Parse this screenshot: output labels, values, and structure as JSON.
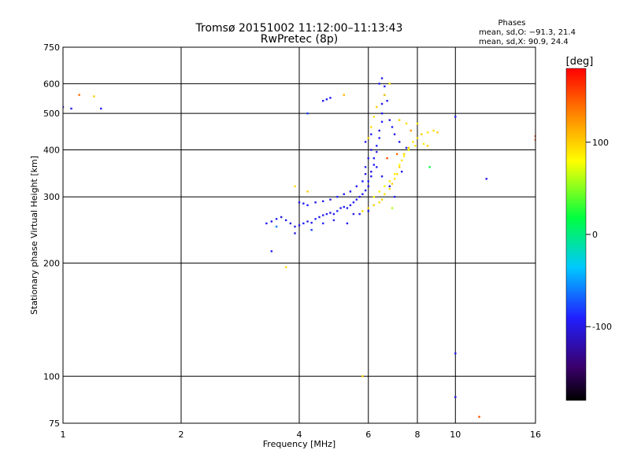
{
  "chart_data": {
    "type": "scatter",
    "title": "Tromsø 20151002 11:12:00–11:13:43",
    "subtitle": "RwPretec (8p)",
    "xlabel": "Frequency [MHz]",
    "ylabel": "Stationary phase Virtual Height [km]",
    "x_scale": "log",
    "y_scale": "log",
    "xlim": [
      1,
      16
    ],
    "ylim": [
      75,
      750
    ],
    "xticks": [
      1,
      2,
      4,
      6,
      8,
      10,
      16
    ],
    "yticks": [
      75,
      100,
      200,
      300,
      400,
      500,
      600,
      750
    ],
    "grid": true,
    "phases_box": {
      "heading": "Phases",
      "line_o": "mean, sd,O: −91.3, 21.4",
      "line_x": "mean, sd,X:  90.9, 24.4"
    },
    "colorbar": {
      "label": "[deg]",
      "range": [
        -180,
        180
      ],
      "ticks": [
        -100,
        0,
        100
      ]
    },
    "series": [
      {
        "mode": "O",
        "points": [
          [
            3.3,
            255,
            -95
          ],
          [
            3.4,
            258,
            -100
          ],
          [
            3.5,
            262,
            -90
          ],
          [
            3.6,
            265,
            -105
          ],
          [
            3.7,
            260,
            -95
          ],
          [
            3.8,
            255,
            -100
          ],
          [
            3.9,
            250,
            -92
          ],
          [
            4.0,
            252,
            -98
          ],
          [
            4.1,
            255,
            -90
          ],
          [
            4.2,
            258,
            -100
          ],
          [
            4.3,
            256,
            -95
          ],
          [
            4.4,
            262,
            -88
          ],
          [
            4.5,
            265,
            -100
          ],
          [
            4.6,
            268,
            -95
          ],
          [
            4.7,
            270,
            -90
          ],
          [
            4.8,
            272,
            -100
          ],
          [
            4.9,
            270,
            -95
          ],
          [
            5.0,
            275,
            -88
          ],
          [
            5.1,
            280,
            -100
          ],
          [
            5.2,
            282,
            -92
          ],
          [
            5.3,
            280,
            -95
          ],
          [
            5.4,
            285,
            -100
          ],
          [
            5.5,
            290,
            -90
          ],
          [
            5.6,
            295,
            -95
          ],
          [
            5.7,
            300,
            -100
          ],
          [
            5.8,
            305,
            -92
          ],
          [
            5.9,
            312,
            -95
          ],
          [
            6.0,
            320,
            -100
          ],
          [
            6.0,
            330,
            -90
          ],
          [
            6.1,
            340,
            -95
          ],
          [
            6.1,
            350,
            -100
          ],
          [
            6.2,
            365,
            -92
          ],
          [
            6.2,
            380,
            -95
          ],
          [
            6.3,
            395,
            -100
          ],
          [
            6.3,
            410,
            -90
          ],
          [
            6.4,
            430,
            -95
          ],
          [
            6.4,
            450,
            -100
          ],
          [
            6.5,
            475,
            -92
          ],
          [
            6.5,
            500,
            -95
          ],
          [
            6.5,
            530,
            -100
          ],
          [
            6.6,
            560,
            -90
          ],
          [
            6.6,
            590,
            -95
          ],
          [
            6.5,
            620,
            -100
          ],
          [
            6.4,
            600,
            -90
          ],
          [
            6.7,
            540,
            -95
          ],
          [
            6.8,
            480,
            -100
          ],
          [
            6.9,
            460,
            -92
          ],
          [
            7.0,
            440,
            -95
          ],
          [
            7.2,
            420,
            -100
          ],
          [
            7.5,
            405,
            -90
          ],
          [
            4.0,
            290,
            -100
          ],
          [
            4.1,
            288,
            -95
          ],
          [
            4.2,
            285,
            -90
          ],
          [
            4.4,
            290,
            -100
          ],
          [
            4.6,
            292,
            -95
          ],
          [
            4.8,
            295,
            -100
          ],
          [
            5.0,
            300,
            -90
          ],
          [
            5.2,
            305,
            -95
          ],
          [
            5.4,
            310,
            -100
          ],
          [
            5.6,
            320,
            -92
          ],
          [
            5.8,
            330,
            -95
          ],
          [
            5.9,
            345,
            -100
          ],
          [
            5.9,
            360,
            -90
          ],
          [
            6.0,
            380,
            -95
          ],
          [
            6.1,
            400,
            -100
          ],
          [
            3.5,
            250,
            -60
          ],
          [
            3.9,
            240,
            -100
          ],
          [
            4.3,
            245,
            -80
          ],
          [
            5.3,
            255,
            -95
          ],
          [
            4.6,
            255,
            -88
          ],
          [
            5.5,
            270,
            -100
          ],
          [
            4.9,
            260,
            -92
          ],
          [
            5.7,
            270,
            -95
          ],
          [
            6.0,
            275,
            -100
          ],
          [
            6.2,
            285,
            -90
          ],
          [
            3.4,
            215,
            -95
          ],
          [
            4.2,
            500,
            -80
          ],
          [
            4.6,
            540,
            -95
          ],
          [
            4.8,
            550,
            -100
          ],
          [
            4.7,
            545,
            -92
          ],
          [
            1.0,
            520,
            -95
          ],
          [
            1.05,
            515,
            -100
          ],
          [
            1.25,
            515,
            -95
          ],
          [
            12.0,
            335,
            -100
          ],
          [
            10.0,
            115,
            -95
          ],
          [
            10.0,
            88,
            -100
          ],
          [
            10.0,
            490,
            -90
          ],
          [
            6.1,
            440,
            -95
          ],
          [
            5.9,
            420,
            -100
          ],
          [
            6.3,
            360,
            -92
          ],
          [
            6.5,
            340,
            -95
          ],
          [
            6.8,
            320,
            -100
          ],
          [
            7.0,
            300,
            -90
          ],
          [
            7.3,
            350,
            -95
          ]
        ]
      },
      {
        "mode": "X",
        "points": [
          [
            5.8,
            275,
            95
          ],
          [
            6.0,
            280,
            100
          ],
          [
            6.2,
            285,
            90
          ],
          [
            6.4,
            290,
            95
          ],
          [
            6.5,
            295,
            100
          ],
          [
            6.6,
            305,
            92
          ],
          [
            6.8,
            315,
            95
          ],
          [
            6.9,
            325,
            100
          ],
          [
            7.0,
            335,
            90
          ],
          [
            7.1,
            345,
            95
          ],
          [
            7.2,
            360,
            100
          ],
          [
            7.3,
            375,
            92
          ],
          [
            7.4,
            390,
            95
          ],
          [
            7.6,
            405,
            100
          ],
          [
            7.8,
            420,
            90
          ],
          [
            8.0,
            430,
            95
          ],
          [
            8.2,
            440,
            100
          ],
          [
            8.5,
            445,
            92
          ],
          [
            8.8,
            450,
            95
          ],
          [
            9.0,
            445,
            100
          ],
          [
            6.2,
            300,
            80
          ],
          [
            6.4,
            310,
            85
          ],
          [
            6.6,
            320,
            75
          ],
          [
            6.8,
            330,
            90
          ],
          [
            7.0,
            345,
            85
          ],
          [
            7.2,
            365,
            80
          ],
          [
            7.4,
            385,
            85
          ],
          [
            7.6,
            400,
            75
          ],
          [
            7.9,
            410,
            90
          ],
          [
            8.3,
            415,
            85
          ],
          [
            6.0,
            430,
            100
          ],
          [
            6.1,
            460,
            95
          ],
          [
            6.2,
            490,
            90
          ],
          [
            6.3,
            520,
            100
          ],
          [
            6.6,
            560,
            95
          ],
          [
            6.8,
            600,
            90
          ],
          [
            7.2,
            480,
            100
          ],
          [
            7.5,
            470,
            95
          ],
          [
            8.0,
            470,
            90
          ],
          [
            8.5,
            410,
            100
          ],
          [
            6.7,
            380,
            150
          ],
          [
            7.1,
            390,
            140
          ],
          [
            8.6,
            360,
            20
          ],
          [
            7.7,
            450,
            120
          ],
          [
            6.9,
            280,
            60
          ],
          [
            1.1,
            560,
            140
          ],
          [
            1.2,
            555,
            100
          ],
          [
            3.7,
            195,
            95
          ],
          [
            5.8,
            100,
            100
          ],
          [
            11.5,
            78,
            150
          ],
          [
            16.0,
            435,
            160
          ],
          [
            16.0,
            425,
            155
          ],
          [
            4.2,
            310,
            100
          ],
          [
            3.9,
            320,
            95
          ],
          [
            5.2,
            560,
            110
          ]
        ]
      }
    ]
  }
}
